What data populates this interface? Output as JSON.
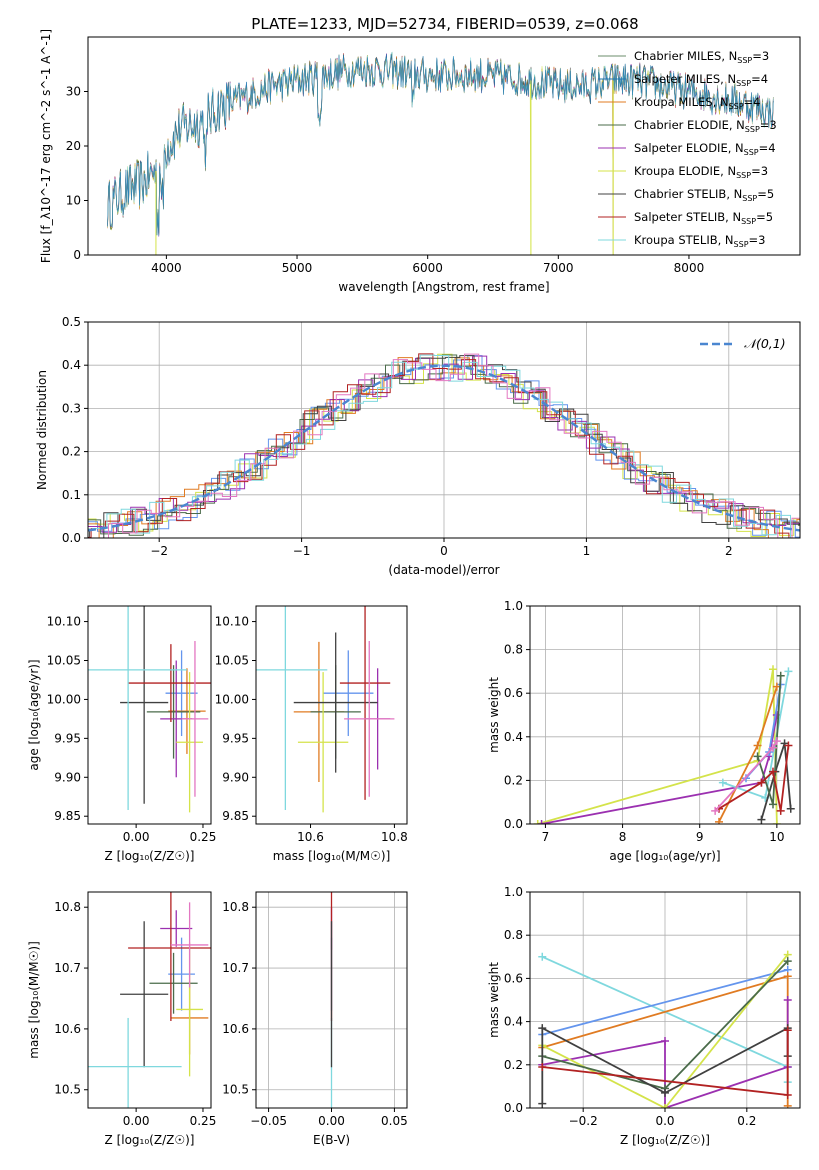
{
  "figure": {
    "title": "PLATE=1233, MJD=52734, FIBERID=0539, z=0.068"
  },
  "colors": {
    "chabrier_miles": "#6b8e6b",
    "salpeter_miles": "#1f77b4",
    "kroupa_miles": "#e07b22",
    "chabrier_elodie": "#4a6b4a",
    "salpeter_elodie": "#9b30b0",
    "kroupa_elodie": "#d4e34a",
    "chabrier_stelib": "#404040",
    "salpeter_stelib": "#b22222",
    "kroupa_stelib": "#7fd8de",
    "pink": "#e377c2",
    "blue": "#6495ed",
    "grid": "#b0b0b0",
    "gauss": "#4a86d0"
  },
  "chart_data": [
    {
      "id": "spectrum",
      "type": "line",
      "title": "PLATE=1233, MJD=52734, FIBERID=0539, z=0.068",
      "xlabel": "wavelength [Angstrom, rest frame]",
      "ylabel": "Flux [f_λ10^-17 erg cm^-2 s^-1 A^-1]",
      "xlim": [
        3400,
        8850
      ],
      "ylim": [
        0,
        40
      ],
      "xticks": [
        4000,
        5000,
        6000,
        7000,
        8000
      ],
      "yticks": [
        0,
        10,
        20,
        30
      ],
      "grid": false,
      "legend_position": "top-right",
      "legend": [
        "Chabrier MILES, N_SSP=3",
        "Salpeter MILES, N_SSP=4",
        "Kroupa MILES, N_SSP=4",
        "Chabrier ELODIE, N_SSP=3",
        "Salpeter ELODIE, N_SSP=4",
        "Kroupa ELODIE, N_SSP=3",
        "Chabrier STELIB, N_SSP=5",
        "Salpeter STELIB, N_SSP=5",
        "Kroupa STELIB, N_SSP=3"
      ],
      "continuum": {
        "x": [
          3550,
          3700,
          3800,
          3950,
          4000,
          4100,
          4200,
          4300,
          4400,
          4500,
          4600,
          4800,
          5000,
          5200,
          5400,
          5600,
          5800,
          6000,
          6200,
          6400,
          6600,
          6800,
          7000,
          7200,
          7400,
          7600,
          7800,
          8000,
          8200,
          8400,
          8650
        ],
        "y": [
          9,
          12,
          13,
          16,
          20,
          23,
          24,
          25,
          27,
          28,
          29,
          31,
          32,
          33,
          34,
          34,
          33.5,
          33,
          33,
          33,
          32.5,
          32,
          31,
          31,
          32,
          32,
          31,
          30,
          29,
          28,
          26
        ]
      },
      "features": [
        {
          "x": 3920,
          "y": 0
        },
        {
          "x": 6790,
          "y": 0
        },
        {
          "x": 7420,
          "y": 0
        }
      ]
    },
    {
      "id": "residuals",
      "type": "line",
      "xlabel": "(data-model)/error",
      "ylabel": "Normed distribution",
      "xlim": [
        -2.5,
        2.5
      ],
      "ylim": [
        0,
        0.5
      ],
      "xticks": [
        -2,
        -1,
        0,
        1,
        2
      ],
      "yticks": [
        0.0,
        0.1,
        0.2,
        0.3,
        0.4,
        0.5
      ],
      "grid": true,
      "legend_position": "top-right",
      "legend": [
        "𝒩(0,1)"
      ]
    },
    {
      "id": "age_vs_Z",
      "type": "scatter",
      "xlabel": "Z [log₁₀(Z/Z☉)]",
      "ylabel": "age  [log₁₀(age/yr)]",
      "xlim": [
        -0.18,
        0.28
      ],
      "ylim": [
        9.84,
        10.12
      ],
      "xticks": [
        0.0,
        0.25
      ],
      "yticks": [
        9.85,
        9.9,
        9.95,
        10.0,
        10.05,
        10.1
      ],
      "grid": false,
      "points": [
        {
          "x": 0.17,
          "xerr": 0.06,
          "y": 10.008,
          "yerr": 0.055,
          "c": "blue"
        },
        {
          "x": 0.19,
          "xerr": 0.07,
          "y": 9.985,
          "yerr": 0.055,
          "c": "kroupa_miles"
        },
        {
          "x": 0.14,
          "xerr": 0.1,
          "y": 9.984,
          "yerr": 0.06,
          "c": "chabrier_elodie"
        },
        {
          "x": 0.15,
          "xerr": 0.06,
          "y": 9.975,
          "yerr": 0.075,
          "c": "salpeter_elodie"
        },
        {
          "x": 0.2,
          "xerr": 0.05,
          "y": 9.945,
          "yerr": 0.09,
          "c": "kroupa_elodie"
        },
        {
          "x": 0.03,
          "xerr": 0.09,
          "y": 9.996,
          "yerr": 0.13,
          "c": "chabrier_stelib"
        },
        {
          "x": 0.13,
          "xerr": 0.16,
          "y": 10.021,
          "yerr": 0.05,
          "c": "salpeter_stelib"
        },
        {
          "x": -0.03,
          "xerr": 0.22,
          "y": 10.038,
          "yerr": 0.18,
          "c": "kroupa_stelib"
        },
        {
          "x": 0.22,
          "xerr": 0.05,
          "y": 9.975,
          "yerr": 0.1,
          "c": "pink"
        }
      ]
    },
    {
      "id": "age_vs_mass",
      "type": "scatter",
      "xlabel": "mass [log₁₀(M/M☉)]",
      "ylabel": "",
      "xlim": [
        10.47,
        10.83
      ],
      "ylim": [
        9.84,
        10.12
      ],
      "xticks": [
        10.6,
        10.8
      ],
      "yticks": [
        9.85,
        9.9,
        9.95,
        10.0,
        10.05,
        10.1
      ],
      "grid": false,
      "points": [
        {
          "x": 10.69,
          "xerr": 0.06,
          "y": 10.008,
          "yerr": 0.055,
          "c": "blue"
        },
        {
          "x": 10.62,
          "xerr": 0.06,
          "y": 9.984,
          "yerr": 0.09,
          "c": "kroupa_miles"
        },
        {
          "x": 10.66,
          "xerr": 0.06,
          "y": 9.984,
          "yerr": 0.06,
          "c": "chabrier_elodie"
        },
        {
          "x": 10.76,
          "xerr": 0.03,
          "y": 9.975,
          "yerr": 0.065,
          "c": "salpeter_elodie"
        },
        {
          "x": 10.63,
          "xerr": 0.06,
          "y": 9.945,
          "yerr": 0.09,
          "c": "kroupa_elodie"
        },
        {
          "x": 10.66,
          "xerr": 0.1,
          "y": 9.996,
          "yerr": 0.09,
          "c": "chabrier_stelib"
        },
        {
          "x": 10.73,
          "xerr": 0.06,
          "y": 10.021,
          "yerr": 0.15,
          "c": "salpeter_stelib"
        },
        {
          "x": 10.54,
          "xerr": 0.1,
          "y": 10.038,
          "yerr": 0.18,
          "c": "kroupa_stelib"
        },
        {
          "x": 10.74,
          "xerr": 0.06,
          "y": 9.975,
          "yerr": 0.1,
          "c": "pink"
        }
      ]
    },
    {
      "id": "weight_vs_age",
      "type": "line",
      "xlabel": "age  [log₁₀(age/yr)]",
      "ylabel": "mass weight",
      "xlim": [
        6.8,
        10.3
      ],
      "ylim": [
        0,
        1.0
      ],
      "xticks": [
        7,
        8,
        9,
        10
      ],
      "yticks": [
        0.0,
        0.2,
        0.4,
        0.6,
        0.8,
        1.0
      ],
      "grid": true,
      "series": [
        {
          "c": "kroupa_elodie",
          "x": [
            6.9,
            9.75,
            9.95,
            10.0
          ],
          "y": [
            0.0,
            0.29,
            0.71,
            0.0
          ]
        },
        {
          "c": "salpeter_elodie",
          "x": [
            6.95,
            9.8,
            9.9,
            10.0
          ],
          "y": [
            0.0,
            0.19,
            0.31,
            0.5
          ]
        },
        {
          "c": "kroupa_stelib",
          "x": [
            9.3,
            9.85,
            10.15
          ],
          "y": [
            0.19,
            0.12,
            0.7
          ]
        },
        {
          "c": "blue",
          "x": [
            9.6,
            9.9,
            10.05
          ],
          "y": [
            0.21,
            0.33,
            0.64
          ]
        },
        {
          "c": "kroupa_miles",
          "x": [
            9.25,
            9.75,
            10.0
          ],
          "y": [
            0.01,
            0.36,
            0.63
          ]
        },
        {
          "c": "chabrier_stelib",
          "x": [
            9.8,
            9.98,
            10.1,
            10.18
          ],
          "y": [
            0.02,
            0.24,
            0.37,
            0.07
          ]
        },
        {
          "c": "chabrier_elodie",
          "x": [
            9.75,
            9.95,
            10.05
          ],
          "y": [
            0.31,
            0.09,
            0.68
          ]
        },
        {
          "c": "salpeter_stelib",
          "x": [
            9.25,
            9.8,
            9.95,
            10.05,
            10.15
          ],
          "y": [
            0.07,
            0.19,
            0.24,
            0.06,
            0.36
          ]
        },
        {
          "c": "pink",
          "x": [
            9.2,
            9.95,
            10.0
          ],
          "y": [
            0.06,
            0.35,
            0.38
          ]
        }
      ]
    },
    {
      "id": "mass_vs_Z",
      "type": "scatter",
      "xlabel": "Z [log₁₀(Z/Z☉)]",
      "ylabel": "mass [log₁₀(M/M☉)]",
      "xlim": [
        -0.18,
        0.28
      ],
      "ylim": [
        10.47,
        10.825
      ],
      "xticks": [
        0.0,
        0.25
      ],
      "yticks": [
        10.5,
        10.6,
        10.7,
        10.8
      ],
      "grid": false,
      "points": [
        {
          "x": 0.17,
          "xerr": 0.05,
          "y": 10.69,
          "yerr": 0.06,
          "c": "blue"
        },
        {
          "x": 0.2,
          "xerr": 0.07,
          "y": 10.618,
          "yerr": 0.06,
          "c": "kroupa_miles"
        },
        {
          "x": 0.14,
          "xerr": 0.09,
          "y": 10.675,
          "yerr": 0.05,
          "c": "chabrier_elodie"
        },
        {
          "x": 0.15,
          "xerr": 0.06,
          "y": 10.765,
          "yerr": 0.03,
          "c": "salpeter_elodie"
        },
        {
          "x": 0.2,
          "xerr": 0.05,
          "y": 10.632,
          "yerr": 0.11,
          "c": "kroupa_elodie"
        },
        {
          "x": 0.03,
          "xerr": 0.09,
          "y": 10.657,
          "yerr": 0.12,
          "c": "chabrier_stelib"
        },
        {
          "x": 0.13,
          "xerr": 0.16,
          "y": 10.733,
          "yerr": 0.12,
          "c": "salpeter_stelib"
        },
        {
          "x": -0.03,
          "xerr": 0.2,
          "y": 10.538,
          "yerr": 0.08,
          "c": "kroupa_stelib"
        },
        {
          "x": 0.2,
          "xerr": 0.07,
          "y": 10.738,
          "yerr": 0.07,
          "c": "pink"
        }
      ]
    },
    {
      "id": "mass_vs_ebv",
      "type": "scatter",
      "xlabel": "E(B-V)",
      "ylabel": "",
      "xlim": [
        -0.06,
        0.06
      ],
      "ylim": [
        10.47,
        10.825
      ],
      "xticks": [
        -0.05,
        0.0,
        0.05
      ],
      "yticks": [
        10.5,
        10.6,
        10.7,
        10.8
      ],
      "grid": true,
      "points": [
        {
          "x": 0.0,
          "y": 10.538,
          "yerr": 0.08,
          "c": "kroupa_stelib"
        },
        {
          "x": 0.0,
          "y": 10.69,
          "yerr": 0.06,
          "c": "blue"
        },
        {
          "x": 0.0,
          "y": 10.765,
          "yerr": 0.035,
          "c": "salpeter_elodie"
        },
        {
          "x": 0.0,
          "y": 10.733,
          "yerr": 0.12,
          "c": "salpeter_stelib"
        },
        {
          "x": 0.0,
          "y": 10.657,
          "yerr": 0.12,
          "c": "chabrier_stelib"
        }
      ]
    },
    {
      "id": "weight_vs_Z",
      "type": "line",
      "xlabel": "Z [log₁₀(Z/Z☉)]",
      "ylabel": "mass weight",
      "xlim": [
        -0.33,
        0.33
      ],
      "ylim": [
        0,
        1.0
      ],
      "xticks": [
        -0.2,
        0.0,
        0.2
      ],
      "yticks": [
        0.0,
        0.2,
        0.4,
        0.6,
        0.8,
        1.0
      ],
      "grid": true,
      "series": [
        {
          "c": "kroupa_stelib",
          "x": [
            -0.3,
            0.3,
            0.3
          ],
          "y": [
            0.7,
            0.19,
            0.12
          ]
        },
        {
          "c": "blue",
          "x": [
            -0.3,
            0.3
          ],
          "y": [
            0.34,
            0.64
          ]
        },
        {
          "c": "kroupa_miles",
          "x": [
            -0.3,
            0.3,
            0.3
          ],
          "y": [
            0.28,
            0.61,
            0.01
          ]
        },
        {
          "c": "salpeter_elodie",
          "x": [
            -0.3,
            0.0,
            0.0,
            0.3,
            0.3
          ],
          "y": [
            0.2,
            0.31,
            0.0,
            0.19,
            0.5
          ]
        },
        {
          "c": "kroupa_elodie",
          "x": [
            -0.3,
            0.0,
            0.3
          ],
          "y": [
            0.29,
            0.0,
            0.71
          ]
        },
        {
          "c": "chabrier_elodie",
          "x": [
            -0.3,
            0.0,
            0.3
          ],
          "y": [
            0.24,
            0.09,
            0.68
          ]
        },
        {
          "c": "chabrier_stelib",
          "x": [
            -0.3,
            -0.3,
            0.0,
            0.3,
            0.3
          ],
          "y": [
            0.02,
            0.37,
            0.07,
            0.37,
            0.24
          ]
        },
        {
          "c": "salpeter_stelib",
          "x": [
            -0.3,
            0.3,
            0.3
          ],
          "y": [
            0.19,
            0.06,
            0.36
          ]
        }
      ]
    }
  ]
}
